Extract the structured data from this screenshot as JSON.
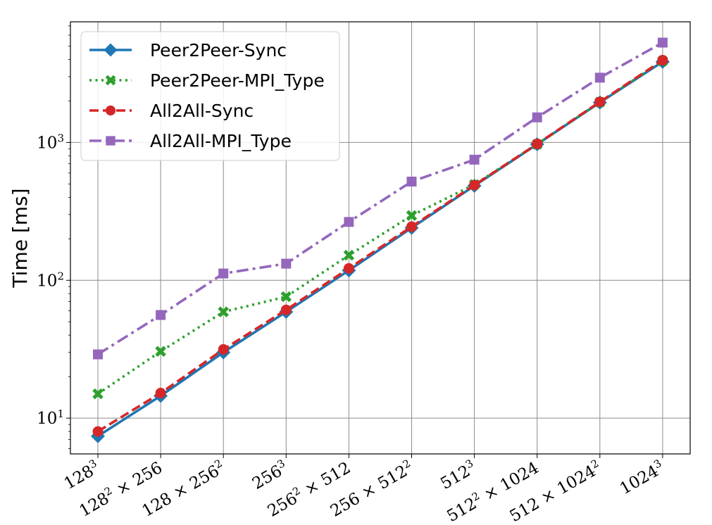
{
  "chart_data": {
    "type": "line",
    "title": "",
    "xlabel": "",
    "ylabel": "Time [ms]",
    "yscale": "log",
    "ylim": [
      5.5,
      7500
    ],
    "grid": true,
    "legend_position": "top-left",
    "categories": [
      {
        "base": "128",
        "sup": "3",
        "rest": ""
      },
      {
        "base": "128",
        "sup": "2",
        "rest": " × 256"
      },
      {
        "base": "128 × 256",
        "sup": "2",
        "rest": ""
      },
      {
        "base": "256",
        "sup": "3",
        "rest": ""
      },
      {
        "base": "256",
        "sup": "2",
        "rest": " × 512"
      },
      {
        "base": "256 × 512",
        "sup": "2",
        "rest": ""
      },
      {
        "base": "512",
        "sup": "3",
        "rest": ""
      },
      {
        "base": "512",
        "sup": "2",
        "rest": " × 1024"
      },
      {
        "base": "512 × 1024",
        "sup": "2",
        "rest": ""
      },
      {
        "base": "1024",
        "sup": "3",
        "rest": ""
      }
    ],
    "yticks": [
      {
        "value": 10,
        "base": "10",
        "sup": "1"
      },
      {
        "value": 100,
        "base": "10",
        "sup": "2"
      },
      {
        "value": 1000,
        "base": "10",
        "sup": "3"
      }
    ],
    "series": [
      {
        "name": "Peer2Peer-Sync",
        "color": "#1f77b4",
        "marker": "diamond",
        "dash": "solid",
        "values": [
          7.4,
          14.5,
          30,
          59,
          118,
          240,
          485,
          970,
          1950,
          3850
        ]
      },
      {
        "name": "Peer2Peer-MPI_Type",
        "color": "#2ca02c",
        "marker": "x",
        "dash": "dotted",
        "values": [
          15,
          30.5,
          59,
          76,
          152,
          295,
          495,
          970,
          1960,
          3900
        ]
      },
      {
        "name": "All2All-Sync",
        "color": "#d62728",
        "marker": "circle",
        "dash": "dashed",
        "values": [
          8,
          15.2,
          31.5,
          61,
          122,
          245,
          490,
          975,
          1970,
          3950
        ]
      },
      {
        "name": "All2All-MPI_Type",
        "color": "#9467bd",
        "marker": "square",
        "dash": "dashdot",
        "values": [
          29,
          56,
          112,
          132,
          265,
          520,
          750,
          1520,
          2950,
          5300
        ]
      }
    ]
  }
}
